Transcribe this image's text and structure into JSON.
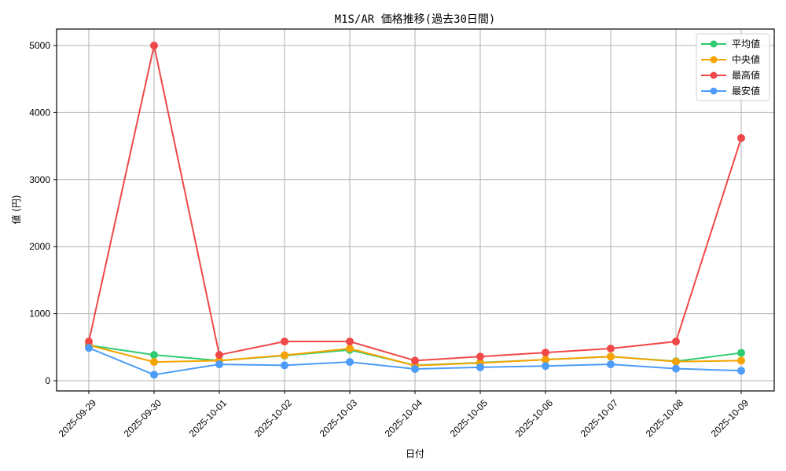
{
  "chart_data": {
    "type": "line",
    "title": "M1S/AR 価格推移(過去30日間)",
    "xlabel": "日付",
    "ylabel": "値 (円)",
    "ylim": [
      -150,
      5250
    ],
    "yticks": [
      0,
      1000,
      2000,
      3000,
      4000,
      5000
    ],
    "grid": true,
    "legend_position": "upper right",
    "categories": [
      "2025-09-29",
      "2025-09-30",
      "2025-10-01",
      "2025-10-02",
      "2025-10-03",
      "2025-10-04",
      "2025-10-05",
      "2025-10-06",
      "2025-10-07",
      "2025-10-08",
      "2025-10-09"
    ],
    "series": [
      {
        "name": "平均値",
        "color": "#2ecc71",
        "values": [
          530,
          385,
          300,
          375,
          460,
          230,
          270,
          315,
          360,
          290,
          415
        ]
      },
      {
        "name": "中央値",
        "color": "#f5a300",
        "values": [
          530,
          280,
          300,
          380,
          480,
          225,
          265,
          315,
          360,
          285,
          300
        ]
      },
      {
        "name": "最高値",
        "color": "#f04848",
        "values": [
          585,
          5000,
          385,
          585,
          585,
          300,
          360,
          420,
          480,
          585,
          3620
        ]
      },
      {
        "name": "最安値",
        "color": "#4d9cf8",
        "values": [
          490,
          90,
          245,
          230,
          280,
          175,
          200,
          220,
          245,
          180,
          150
        ]
      }
    ]
  }
}
